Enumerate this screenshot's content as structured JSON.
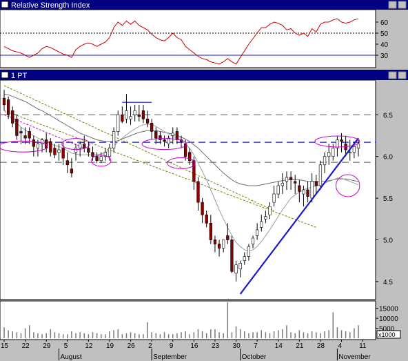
{
  "rsi_panel": {
    "title": "Relative Strength Index",
    "yticks": [
      "60",
      "50",
      "40",
      "30"
    ],
    "yrange": [
      20,
      70
    ],
    "reference_lines": {
      "dotted": 50,
      "solid": 30
    }
  },
  "price_panel": {
    "title": "1 PT",
    "yticks": [
      "6.5",
      "6.0",
      "5.5",
      "5.0",
      "4.5"
    ],
    "yrange": [
      4.3,
      6.9
    ],
    "reference_lines_dashed": [
      6.5,
      6.17,
      5.93
    ]
  },
  "volume_panel": {
    "yticks": [
      "15000",
      "10000",
      "5000"
    ],
    "multiplier_label": "x1000",
    "yrange": [
      0,
      18000
    ]
  },
  "x_axis": {
    "day_labels": [
      "15",
      "22",
      "29",
      "5",
      "12",
      "19",
      "26",
      "2",
      "9",
      "16",
      "23",
      "30",
      "7",
      "14",
      "21",
      "28",
      "4",
      "11"
    ],
    "month_labels": [
      "August",
      "September",
      "October",
      "November"
    ]
  },
  "colors": {
    "candle_up": "#ffffff",
    "candle_down": "#8b0000",
    "rsi_line": "#cc0000",
    "trendline": "#1a1acc",
    "annotation_circle": "#cc00cc",
    "ma_fast": "#9aa0a0",
    "ma_slow": "#6f6f6f",
    "channel": "#7a7a00",
    "title_bar": "#000080"
  },
  "chart_data": {
    "type": "candlestick",
    "dates": [
      "Jul 15",
      "Jul 16",
      "Jul 17",
      "Jul 18",
      "Jul 19",
      "Jul 22",
      "Jul 23",
      "Jul 24",
      "Jul 25",
      "Jul 26",
      "Jul 29",
      "Jul 30",
      "Jul 31",
      "Aug 1",
      "Aug 2",
      "Aug 5",
      "Aug 6",
      "Aug 7",
      "Aug 8",
      "Aug 9",
      "Aug 12",
      "Aug 13",
      "Aug 14",
      "Aug 15",
      "Aug 16",
      "Aug 19",
      "Aug 20",
      "Aug 21",
      "Aug 22",
      "Aug 23",
      "Aug 26",
      "Aug 27",
      "Aug 28",
      "Aug 29",
      "Aug 30",
      "Sep 2",
      "Sep 3",
      "Sep 4",
      "Sep 5",
      "Sep 6",
      "Sep 9",
      "Sep 10",
      "Sep 11",
      "Sep 12",
      "Sep 13",
      "Sep 16",
      "Sep 17",
      "Sep 18",
      "Sep 19",
      "Sep 20",
      "Sep 23",
      "Sep 24",
      "Sep 25",
      "Sep 26",
      "Sep 27",
      "Sep 30",
      "Oct 1",
      "Oct 2",
      "Oct 3",
      "Oct 4",
      "Oct 7",
      "Oct 8",
      "Oct 9",
      "Oct 10",
      "Oct 11",
      "Oct 14",
      "Oct 15",
      "Oct 16",
      "Oct 17",
      "Oct 18",
      "Oct 21",
      "Oct 22",
      "Oct 23",
      "Oct 24",
      "Oct 25",
      "Oct 28",
      "Oct 29",
      "Oct 30",
      "Oct 31",
      "Nov 1",
      "Nov 4",
      "Nov 5",
      "Nov 6",
      "Nov 7",
      "Nov 8"
    ],
    "open": [
      6.7,
      6.68,
      6.55,
      6.45,
      6.3,
      6.25,
      6.3,
      6.2,
      6.1,
      6.15,
      6.2,
      6.18,
      6.1,
      6.05,
      6.1,
      5.95,
      5.85,
      6.05,
      6.1,
      6.15,
      6.1,
      6.05,
      6.0,
      5.95,
      6.0,
      6.0,
      6.1,
      6.3,
      6.5,
      6.45,
      6.45,
      6.5,
      6.5,
      6.55,
      6.45,
      6.4,
      6.3,
      6.25,
      6.2,
      6.15,
      6.25,
      6.3,
      6.2,
      6.15,
      6.05,
      5.95,
      5.7,
      5.45,
      5.3,
      5.2,
      5.0,
      4.95,
      4.9,
      5.05,
      5.0,
      4.6,
      4.65,
      4.75,
      4.8,
      4.95,
      5.05,
      5.15,
      5.25,
      5.3,
      5.45,
      5.55,
      5.65,
      5.7,
      5.75,
      5.7,
      5.65,
      5.55,
      5.6,
      5.5,
      5.7,
      5.65,
      5.9,
      6.0,
      6.0,
      6.1,
      6.2,
      6.15,
      6.05,
      6.05,
      6.1
    ],
    "high": [
      6.8,
      6.72,
      6.6,
      6.5,
      6.35,
      6.35,
      6.35,
      6.25,
      6.2,
      6.22,
      6.28,
      6.22,
      6.15,
      6.15,
      6.18,
      6.05,
      5.98,
      6.15,
      6.18,
      6.25,
      6.18,
      6.12,
      6.05,
      6.05,
      6.1,
      6.15,
      6.35,
      6.55,
      6.6,
      6.75,
      6.6,
      6.62,
      6.62,
      6.62,
      6.55,
      6.45,
      6.35,
      6.3,
      6.25,
      6.25,
      6.35,
      6.35,
      6.25,
      6.2,
      6.1,
      6.0,
      5.75,
      5.5,
      5.35,
      5.3,
      5.05,
      5.0,
      5.0,
      5.2,
      5.05,
      4.75,
      4.75,
      4.85,
      4.95,
      5.05,
      5.2,
      5.3,
      5.35,
      5.45,
      5.65,
      5.7,
      5.8,
      5.82,
      5.82,
      5.78,
      5.72,
      5.65,
      5.7,
      5.8,
      5.78,
      5.95,
      6.05,
      6.15,
      6.15,
      6.25,
      6.28,
      6.25,
      6.2,
      6.18,
      6.2
    ],
    "low": [
      6.55,
      6.45,
      6.35,
      6.2,
      6.15,
      6.15,
      6.15,
      6.0,
      6.0,
      6.05,
      6.05,
      6.0,
      5.98,
      5.95,
      5.9,
      5.8,
      5.75,
      5.95,
      6.0,
      6.05,
      6.0,
      5.95,
      5.92,
      5.92,
      5.95,
      5.95,
      6.05,
      6.25,
      6.4,
      6.4,
      6.38,
      6.42,
      6.42,
      6.4,
      6.35,
      6.2,
      6.15,
      6.15,
      6.12,
      6.1,
      6.15,
      6.15,
      6.1,
      5.95,
      5.9,
      5.6,
      5.35,
      5.2,
      5.15,
      4.95,
      4.85,
      4.8,
      4.85,
      4.95,
      4.6,
      4.5,
      4.55,
      4.7,
      4.75,
      4.9,
      5.0,
      5.1,
      5.2,
      5.25,
      5.4,
      5.5,
      5.55,
      5.6,
      5.6,
      5.55,
      5.45,
      5.4,
      5.45,
      5.45,
      5.55,
      5.6,
      5.8,
      5.9,
      5.95,
      6.0,
      6.05,
      6.0,
      5.95,
      5.98,
      6.0
    ],
    "close": [
      6.62,
      6.5,
      6.4,
      6.25,
      6.28,
      6.22,
      6.22,
      6.12,
      6.15,
      6.2,
      6.1,
      6.05,
      6.02,
      6.08,
      5.98,
      5.9,
      5.8,
      6.1,
      6.15,
      6.1,
      6.05,
      6.0,
      5.95,
      6.0,
      6.05,
      6.1,
      6.3,
      6.5,
      6.42,
      6.55,
      6.48,
      6.55,
      6.48,
      6.45,
      6.4,
      6.3,
      6.22,
      6.2,
      6.18,
      6.22,
      6.28,
      6.2,
      6.18,
      6.0,
      5.95,
      5.7,
      5.45,
      5.3,
      5.2,
      5.0,
      4.95,
      4.9,
      5.0,
      5.0,
      4.62,
      4.7,
      4.72,
      4.8,
      4.92,
      5.02,
      5.12,
      5.22,
      5.28,
      5.4,
      5.55,
      5.65,
      5.68,
      5.75,
      5.72,
      5.68,
      5.58,
      5.6,
      5.52,
      5.7,
      5.65,
      5.9,
      6.0,
      6.05,
      6.1,
      6.2,
      6.18,
      6.08,
      6.05,
      6.12,
      6.15
    ],
    "ma_fast": [
      6.55,
      6.5,
      6.45,
      6.4,
      6.35,
      6.32,
      6.28,
      6.25,
      6.22,
      6.2,
      6.18,
      6.15,
      6.13,
      6.12,
      6.1,
      6.07,
      6.04,
      6.03,
      6.02,
      6.02,
      6.02,
      6.02,
      6.02,
      6.03,
      6.05,
      6.08,
      6.12,
      6.18,
      6.22,
      6.26,
      6.3,
      6.33,
      6.36,
      6.38,
      6.39,
      6.38,
      6.36,
      6.33,
      6.3,
      6.27,
      6.24,
      6.22,
      6.19,
      6.15,
      6.1,
      6.02,
      5.92,
      5.82,
      5.72,
      5.6,
      5.48,
      5.36,
      5.25,
      5.15,
      5.05,
      4.97,
      4.92,
      4.88,
      4.87,
      4.88,
      4.92,
      4.98,
      5.05,
      5.12,
      5.2,
      5.28,
      5.36,
      5.43,
      5.5,
      5.54,
      5.57,
      5.6,
      5.62,
      5.63,
      5.65,
      5.66,
      5.68,
      5.7,
      5.72,
      5.74,
      5.74,
      5.72,
      5.7,
      5.68,
      5.66
    ],
    "ma_slow": [
      6.75,
      6.74,
      6.72,
      6.7,
      6.68,
      6.66,
      6.63,
      6.6,
      6.57,
      6.55,
      6.52,
      6.49,
      6.46,
      6.43,
      6.4,
      6.37,
      6.34,
      6.31,
      6.28,
      6.26,
      6.24,
      6.22,
      6.2,
      6.19,
      6.18,
      6.18,
      6.18,
      6.19,
      6.21,
      6.23,
      6.25,
      6.27,
      6.29,
      6.3,
      6.31,
      6.31,
      6.31,
      6.3,
      6.29,
      6.28,
      6.27,
      6.25,
      6.23,
      6.21,
      6.18,
      6.14,
      6.1,
      6.05,
      6.0,
      5.95,
      5.9,
      5.85,
      5.8,
      5.76,
      5.72,
      5.69,
      5.67,
      5.66,
      5.65,
      5.65,
      5.65,
      5.66,
      5.67,
      5.68,
      5.69,
      5.7,
      5.71,
      5.72,
      5.72,
      5.72,
      5.72,
      5.71,
      5.7,
      5.7,
      5.7,
      5.7,
      5.7,
      5.71,
      5.72,
      5.73,
      5.73,
      5.73,
      5.72,
      5.71,
      5.7
    ],
    "rsi": [
      38,
      36,
      34,
      33,
      32,
      30,
      28,
      30,
      32,
      36,
      38,
      37,
      35,
      33,
      31,
      30,
      28,
      35,
      38,
      40,
      41,
      40,
      38,
      40,
      42,
      46,
      55,
      60,
      57,
      61,
      58,
      61,
      57,
      55,
      53,
      49,
      46,
      44,
      43,
      46,
      50,
      46,
      44,
      38,
      35,
      32,
      29,
      27,
      26,
      24,
      23,
      22,
      24,
      27,
      24,
      22,
      28,
      34,
      40,
      45,
      50,
      55,
      55,
      58,
      60,
      59,
      57,
      53,
      54,
      50,
      48,
      50,
      47,
      54,
      51,
      58,
      60,
      60,
      62,
      63,
      60,
      59,
      60,
      62,
      63
    ],
    "volume": [
      5500,
      4000,
      3500,
      3000,
      2500,
      5000,
      6500,
      3000,
      2500,
      2000,
      2500,
      4500,
      3000,
      2500,
      2000,
      2000,
      3500,
      2500,
      3000,
      2500,
      2000,
      3000,
      2500,
      2000,
      2000,
      3500,
      4000,
      4500,
      2000,
      2500,
      3000,
      2500,
      2000,
      2000,
      8000,
      3000,
      2500,
      2000,
      3000,
      2000,
      2000,
      2500,
      3000,
      3500,
      2000,
      3000,
      4500,
      3500,
      2500,
      4500,
      4500,
      3000,
      2500,
      18000,
      3000,
      6000,
      4500,
      3500,
      2500,
      3000,
      3000,
      4000,
      3000,
      2500,
      3500,
      4000,
      4500,
      6500,
      3000,
      2500,
      4000,
      3000,
      2500,
      3500,
      3000,
      2500,
      3500,
      4000,
      13000,
      5500,
      4000,
      3500,
      3000,
      5000,
      6500
    ],
    "trendline": {
      "from": {
        "date": "Oct 1",
        "value": 4.35
      },
      "to": {
        "date": "Nov 8",
        "value": 6.22
      }
    },
    "resistance": {
      "date_from": "Aug 22",
      "date_to": "Sep 2",
      "value": 6.65
    },
    "channel_upper": {
      "from": {
        "date": "Jul 15",
        "value": 6.55
      },
      "to": {
        "date": "Oct 25",
        "value": 5.15
      }
    },
    "channel_lower": {
      "from": {
        "date": "Jul 15",
        "value": 6.85
      },
      "to": {
        "date": "Oct 11",
        "value": 5.35
      }
    },
    "channel_aux": {
      "from": {
        "date": "Jul 15",
        "value": 6.5
      },
      "to": {
        "date": "Aug 9",
        "value": 6.1
      }
    }
  }
}
